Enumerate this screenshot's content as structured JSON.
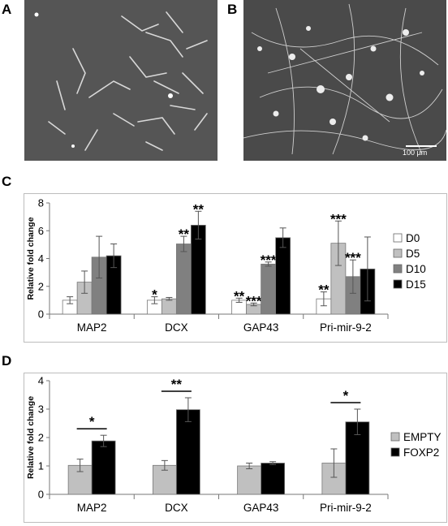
{
  "panels": {
    "a_label": "A",
    "b_label": "B",
    "c_label": "C",
    "d_label": "D",
    "scale_bar": "100 µm"
  },
  "chart_data": [
    {
      "type": "bar",
      "panel": "C",
      "ylabel": "Relative fold change",
      "ylim": [
        0,
        8
      ],
      "yticks": [
        0,
        2,
        4,
        6,
        8
      ],
      "categories": [
        "MAP2",
        "DCX",
        "GAP43",
        "Pri-mir-9-2"
      ],
      "legend_position": "right",
      "series": [
        {
          "name": "D0",
          "color": "#ffffff",
          "values": [
            1.0,
            1.0,
            1.0,
            1.1
          ],
          "errors": [
            0.25,
            0.25,
            0.15,
            0.5
          ]
        },
        {
          "name": "D5",
          "color": "#c0c0c0",
          "values": [
            2.3,
            1.1,
            0.7,
            5.1
          ],
          "errors": [
            0.8,
            0.1,
            0.1,
            1.6
          ]
        },
        {
          "name": "D10",
          "color": "#808080",
          "values": [
            4.1,
            5.05,
            3.6,
            2.7
          ],
          "errors": [
            1.5,
            0.55,
            0.15,
            1.2
          ]
        },
        {
          "name": "D15",
          "color": "#000000",
          "values": [
            4.2,
            6.4,
            5.5,
            3.25
          ],
          "errors": [
            0.85,
            1.0,
            0.7,
            2.3
          ]
        }
      ],
      "significance": [
        [
          "",
          "*",
          "**",
          "**"
        ],
        [
          "",
          "",
          "***",
          "***"
        ],
        [
          "",
          "**",
          "***",
          "***"
        ],
        [
          "",
          "**",
          "",
          ""
        ]
      ]
    },
    {
      "type": "bar",
      "panel": "D",
      "ylabel": "Relative fold change",
      "ylim": [
        0,
        4
      ],
      "yticks": [
        0,
        1,
        2,
        3,
        4
      ],
      "categories": [
        "MAP2",
        "DCX",
        "GAP43",
        "Pri-mir-9-2"
      ],
      "legend_position": "right",
      "series": [
        {
          "name": "EMPTY",
          "color": "#c0c0c0",
          "values": [
            1.02,
            1.02,
            1.0,
            1.1
          ],
          "errors": [
            0.22,
            0.17,
            0.1,
            0.5
          ]
        },
        {
          "name": "FOXP2",
          "color": "#000000",
          "values": [
            1.88,
            2.98,
            1.1,
            2.55
          ],
          "errors": [
            0.2,
            0.42,
            0.05,
            0.45
          ]
        }
      ],
      "brackets": [
        "*",
        "**",
        "",
        "*"
      ]
    }
  ]
}
